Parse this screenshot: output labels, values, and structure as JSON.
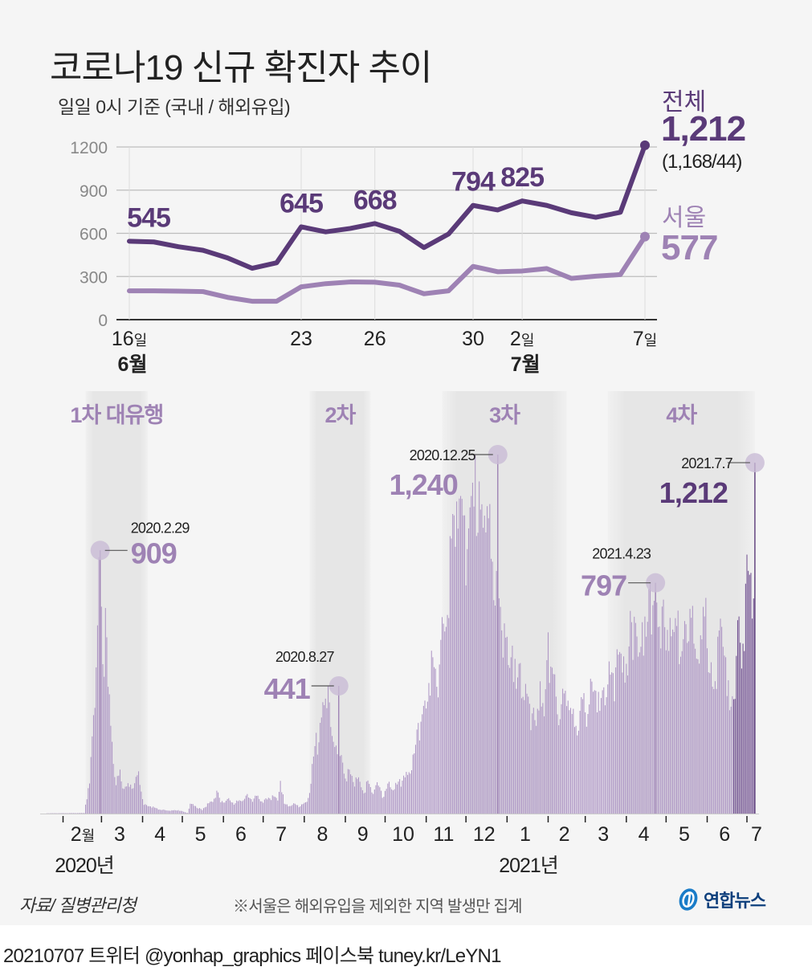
{
  "header": {
    "title": "코로나19 신규 확진자 추이",
    "subtitle": "일일 0시 기준 (국내 / 해외유입)"
  },
  "legend": {
    "total_label": "전체",
    "total_value": "1,212",
    "total_split": "(1,168/44)",
    "seoul_label": "서울",
    "seoul_value": "577"
  },
  "colors": {
    "total": "#5a3a78",
    "seoul": "#9e82b4",
    "bar": "#ad95c4",
    "bar_recent": "#6e4c8f",
    "band": "#e6e6e6",
    "grid": "#bdbdbd",
    "background": "#f5f5f5"
  },
  "chart_data": [
    {
      "type": "line",
      "title": "일일 0시 기준 (국내 / 해외유입)",
      "xlabel": "",
      "ylabel": "",
      "ylim": [
        0,
        1200
      ],
      "yticks": [
        "0",
        "300",
        "600",
        "900",
        "1200"
      ],
      "grid": true,
      "x": [
        "6/16",
        "6/17",
        "6/18",
        "6/19",
        "6/20",
        "6/21",
        "6/22",
        "6/23",
        "6/24",
        "6/25",
        "6/26",
        "6/27",
        "6/28",
        "6/29",
        "6/30",
        "7/1",
        "7/2",
        "7/3",
        "7/4",
        "7/5",
        "7/6",
        "7/7"
      ],
      "xtick_labels": [
        {
          "index": 0,
          "day": "16",
          "unit": "일",
          "month": "6월"
        },
        {
          "index": 7,
          "day": "23",
          "unit": "",
          "month": ""
        },
        {
          "index": 10,
          "day": "26",
          "unit": "",
          "month": ""
        },
        {
          "index": 14,
          "day": "30",
          "unit": "",
          "month": ""
        },
        {
          "index": 16,
          "day": "2",
          "unit": "일",
          "month": "7월"
        },
        {
          "index": 21,
          "day": "7",
          "unit": "일",
          "month": ""
        }
      ],
      "series": [
        {
          "name": "전체",
          "values": [
            545,
            540,
            507,
            482,
            429,
            357,
            395,
            645,
            610,
            634,
            668,
            614,
            501,
            595,
            794,
            762,
            825,
            794,
            743,
            711,
            746,
            1212
          ]
        },
        {
          "name": "서울",
          "values": [
            200,
            200,
            198,
            195,
            155,
            128,
            128,
            228,
            250,
            262,
            260,
            240,
            180,
            200,
            370,
            333,
            338,
            355,
            287,
            302,
            313,
            577
          ]
        }
      ],
      "data_labels": [
        {
          "index": 0,
          "text": "545"
        },
        {
          "index": 7,
          "text": "645"
        },
        {
          "index": 10,
          "text": "668"
        },
        {
          "index": 14,
          "text": "794"
        },
        {
          "index": 16,
          "text": "825"
        }
      ]
    },
    {
      "type": "bar",
      "title": "",
      "xlabel": "",
      "ylabel": "",
      "start_date": "2020-01-20",
      "end_date": "2021-07-07",
      "ylim": [
        0,
        1300
      ],
      "month_labels": [
        "2월",
        "3",
        "4",
        "5",
        "6",
        "7",
        "8",
        "9",
        "10",
        "11",
        "12",
        "1",
        "2",
        "3",
        "4",
        "5",
        "6",
        "7"
      ],
      "year_labels": [
        "2020년",
        "2021년"
      ],
      "waves": [
        {
          "label": "1차 대유행",
          "from": "2020-02-18",
          "to": "2020-04-05"
        },
        {
          "label": "2차",
          "from": "2020-08-05",
          "to": "2020-09-20"
        },
        {
          "label": "3차",
          "from": "2020-11-13",
          "to": "2021-02-15"
        },
        {
          "label": "4차",
          "from": "2021-03-18",
          "to": "2021-07-07"
        }
      ],
      "recent_from": "2021-06-21",
      "anchors": [
        [
          0,
          1
        ],
        [
          28,
          2
        ],
        [
          29,
          31
        ],
        [
          32,
          104
        ],
        [
          35,
          340
        ],
        [
          37,
          505
        ],
        [
          40,
          909
        ],
        [
          42,
          516
        ],
        [
          44,
          710
        ],
        [
          46,
          438
        ],
        [
          49,
          248
        ],
        [
          52,
          98
        ],
        [
          55,
          152
        ],
        [
          57,
          87
        ],
        [
          60,
          94
        ],
        [
          63,
          100
        ],
        [
          66,
          105
        ],
        [
          69,
          146
        ],
        [
          71,
          76
        ],
        [
          73,
          30
        ],
        [
          78,
          25
        ],
        [
          85,
          14
        ],
        [
          92,
          10
        ],
        [
          99,
          12
        ],
        [
          106,
          2
        ],
        [
          108,
          34
        ],
        [
          112,
          26
        ],
        [
          117,
          12
        ],
        [
          121,
          35
        ],
        [
          125,
          40
        ],
        [
          128,
          79
        ],
        [
          131,
          39
        ],
        [
          136,
          50
        ],
        [
          140,
          38
        ],
        [
          146,
          44
        ],
        [
          150,
          62
        ],
        [
          154,
          50
        ],
        [
          158,
          61
        ],
        [
          162,
          42
        ],
        [
          166,
          49
        ],
        [
          170,
          63
        ],
        [
          174,
          45
        ],
        [
          176,
          113
        ],
        [
          179,
          34
        ],
        [
          183,
          26
        ],
        [
          187,
          34
        ],
        [
          191,
          25
        ],
        [
          195,
          39
        ],
        [
          197,
          54
        ],
        [
          199,
          103
        ],
        [
          201,
          197
        ],
        [
          203,
          279
        ],
        [
          205,
          246
        ],
        [
          207,
          332
        ],
        [
          210,
          397
        ],
        [
          212,
          441
        ],
        [
          214,
          299
        ],
        [
          216,
          248
        ],
        [
          218,
          235
        ],
        [
          220,
          198
        ],
        [
          223,
          176
        ],
        [
          225,
          121
        ],
        [
          228,
          152
        ],
        [
          231,
          109
        ],
        [
          233,
          125
        ],
        [
          236,
          110
        ],
        [
          239,
          70
        ],
        [
          242,
          114
        ],
        [
          245,
          73
        ],
        [
          248,
          98
        ],
        [
          251,
          91
        ],
        [
          254,
          58
        ],
        [
          258,
          110
        ],
        [
          262,
          84
        ],
        [
          266,
          119
        ],
        [
          270,
          125
        ],
        [
          273,
          143
        ],
        [
          277,
          208
        ],
        [
          280,
          313
        ],
        [
          283,
          343
        ],
        [
          286,
          363
        ],
        [
          288,
          451
        ],
        [
          291,
          540
        ],
        [
          294,
          438
        ],
        [
          297,
          600
        ],
        [
          300,
          629
        ],
        [
          302,
          686
        ],
        [
          305,
          950
        ],
        [
          307,
          1030
        ],
        [
          309,
          1078
        ],
        [
          312,
          1097
        ],
        [
          315,
          1030
        ],
        [
          318,
          985
        ],
        [
          320,
          1097
        ],
        [
          323,
          1240
        ],
        [
          325,
          970
        ],
        [
          327,
          1050
        ],
        [
          330,
          1029
        ],
        [
          333,
          1020
        ],
        [
          336,
          870
        ],
        [
          339,
          838
        ],
        [
          342,
          714
        ],
        [
          345,
          657
        ],
        [
          348,
          513
        ],
        [
          351,
          580
        ],
        [
          354,
          431
        ],
        [
          357,
          520
        ],
        [
          360,
          392
        ],
        [
          363,
          404
        ],
        [
          366,
          346
        ],
        [
          369,
          303
        ],
        [
          372,
          457
        ],
        [
          375,
          336
        ],
        [
          378,
          626
        ],
        [
          381,
          504
        ],
        [
          384,
          404
        ],
        [
          387,
          326
        ],
        [
          390,
          415
        ],
        [
          393,
          390
        ],
        [
          396,
          344
        ],
        [
          399,
          303
        ],
        [
          402,
          355
        ],
        [
          405,
          416
        ],
        [
          408,
          344
        ],
        [
          411,
          456
        ],
        [
          414,
          424
        ],
        [
          417,
          355
        ],
        [
          420,
          436
        ],
        [
          423,
          446
        ],
        [
          426,
          488
        ],
        [
          429,
          505
        ],
        [
          432,
          558
        ],
        [
          435,
          543
        ],
        [
          438,
          477
        ],
        [
          440,
          700
        ],
        [
          443,
          680
        ],
        [
          446,
          542
        ],
        [
          449,
          661
        ],
        [
          452,
          611
        ],
        [
          455,
          797
        ],
        [
          458,
          735
        ],
        [
          461,
          644
        ],
        [
          464,
          715
        ],
        [
          467,
          564
        ],
        [
          470,
          676
        ],
        [
          473,
          627
        ],
        [
          476,
          701
        ],
        [
          479,
          561
        ],
        [
          482,
          654
        ],
        [
          485,
          707
        ],
        [
          488,
          587
        ],
        [
          491,
          533
        ],
        [
          494,
          602
        ],
        [
          497,
          745
        ],
        [
          500,
          485
        ],
        [
          503,
          430
        ],
        [
          506,
          611
        ],
        [
          509,
          645
        ],
        [
          512,
          540
        ],
        [
          515,
          357
        ],
        [
          518,
          395
        ],
        [
          521,
          668
        ],
        [
          524,
          501
        ],
        [
          527,
          794
        ],
        [
          530,
          825
        ],
        [
          533,
          743
        ],
        [
          536,
          1212
        ]
      ],
      "annotations": [
        {
          "date": "2020.2.29",
          "value": "909"
        },
        {
          "date": "2020.8.27",
          "value": "441"
        },
        {
          "date": "2020.12.25",
          "value": "1,240"
        },
        {
          "date": "2021.4.23",
          "value": "797"
        },
        {
          "date": "2021.7.7",
          "value": "1,212"
        }
      ]
    }
  ],
  "footer": {
    "source": "자료/ 질병관리청",
    "note": "※서울은 해외유입을 제외한 지역 발생만 집계",
    "logo_text": "연합뉴스",
    "credit": "20210707 트위터 @yonhap_graphics  페이스북 tuney.kr/LeYN1"
  }
}
